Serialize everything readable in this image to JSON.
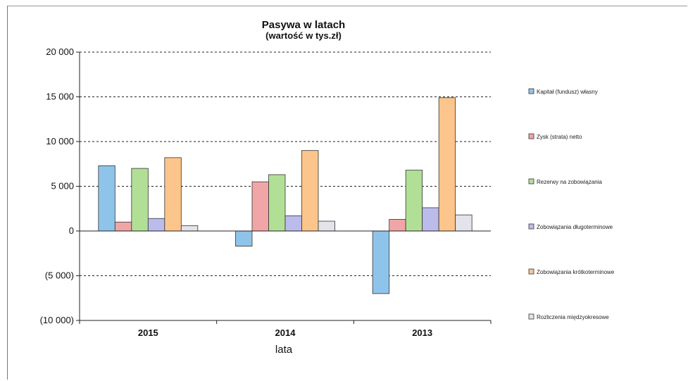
{
  "chart_data": {
    "type": "bar",
    "title": "Pasywa w latach",
    "subtitle": "(wartość w tys.zł)",
    "xlabel": "lata",
    "ylabel": "",
    "categories": [
      "2015",
      "2014",
      "2013"
    ],
    "ylim": [
      -10000,
      20000
    ],
    "yticks": [
      20000,
      15000,
      10000,
      5000,
      0,
      -5000,
      -10000
    ],
    "ytick_labels": [
      "20 000",
      "15 000",
      "10 000",
      "5 000",
      "0",
      "(5 000)",
      "(10 000)"
    ],
    "grid": true,
    "legend_position": "right",
    "series": [
      {
        "name": "Kapitał (fundusz) własny",
        "color": "#8fc4ea",
        "values": [
          7300,
          -1700,
          -7000
        ]
      },
      {
        "name": "Zysk (strata) netto",
        "color": "#f0a6a6",
        "values": [
          1000,
          5500,
          1300
        ]
      },
      {
        "name": "Rezerwy na zobowiązania",
        "color": "#b2df96",
        "values": [
          7000,
          6300,
          6800
        ]
      },
      {
        "name": "Zobowiązania długoterminowe",
        "color": "#bcbcec",
        "values": [
          1400,
          1700,
          2600
        ]
      },
      {
        "name": "Zobowiązania krótkoterminowe",
        "color": "#fbc58b",
        "values": [
          8200,
          9000,
          14900
        ]
      },
      {
        "name": "Rozliczenia międzyokresowe",
        "color": "#e3e3ea",
        "values": [
          600,
          1100,
          1800
        ]
      }
    ]
  }
}
